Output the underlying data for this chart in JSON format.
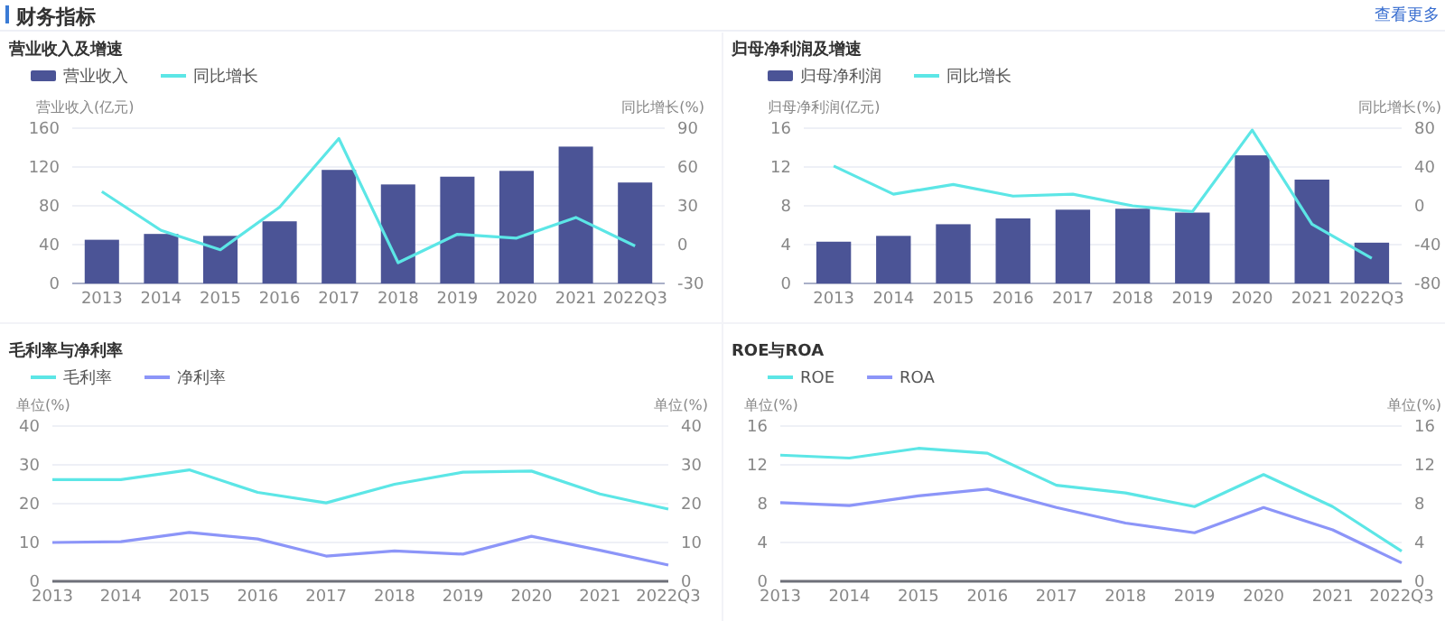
{
  "chart_data": [
    {
      "type": "bar",
      "title": "营业收入及增速",
      "annotations": [
        "财务指标"
      ],
      "ylabel": "营业收入(亿元)",
      "y2label": "同比增长(%)",
      "categories": [
        "2013",
        "2014",
        "2015",
        "2016",
        "2017",
        "2018",
        "2019",
        "2020",
        "2021",
        "2022Q3"
      ],
      "series": [
        {
          "name": "营业收入",
          "color": "#4b5496",
          "values": [
            45,
            51,
            49,
            64,
            117,
            102,
            110,
            116,
            141,
            104
          ]
        },
        {
          "name": "同比增长",
          "type": "line",
          "axis": "y2",
          "color": "#5ce6e6",
          "values": [
            41,
            11,
            -4,
            29,
            82,
            -14,
            8,
            5,
            21,
            -1
          ]
        }
      ],
      "ylim": [
        0,
        160
      ],
      "yticks": [
        0,
        40,
        80,
        120,
        160
      ],
      "y2lim": [
        -30,
        90
      ],
      "y2ticks": [
        -30,
        0,
        30,
        60,
        90
      ],
      "grid": "y",
      "legend": "top left"
    },
    {
      "type": "bar",
      "title": "归母净利润及增速",
      "annotations": [
        "查看更多"
      ],
      "ylabel": "归母净利润(亿元)",
      "y2label": "同比增长(%)",
      "categories": [
        "2013",
        "2014",
        "2015",
        "2016",
        "2017",
        "2018",
        "2019",
        "2020",
        "2021",
        "2022Q3"
      ],
      "series": [
        {
          "name": "归母净利润",
          "color": "#4b5496",
          "values": [
            4.3,
            4.9,
            6.1,
            6.7,
            7.6,
            7.7,
            7.3,
            13.2,
            10.7,
            4.2
          ]
        },
        {
          "name": "同比增长",
          "type": "line",
          "axis": "y2",
          "color": "#5ce6e6",
          "values": [
            41,
            12,
            22,
            10,
            12,
            0,
            -6,
            78,
            -19,
            -54
          ]
        }
      ],
      "ylim": [
        0,
        16
      ],
      "yticks": [
        0,
        4,
        8,
        12,
        16
      ],
      "y2lim": [
        -80,
        80
      ],
      "y2ticks": [
        -80,
        -40,
        0,
        40,
        80
      ],
      "grid": "y",
      "legend": "top left"
    },
    {
      "type": "line",
      "title": "毛利率与净利率",
      "ylabel": "单位(%)",
      "y2label": "单位(%)",
      "categories": [
        "2013",
        "2014",
        "2015",
        "2016",
        "2017",
        "2018",
        "2019",
        "2020",
        "2021",
        "2022Q3"
      ],
      "series": [
        {
          "name": "毛利率",
          "color": "#5ce6e6",
          "values": [
            26.2,
            26.2,
            28.7,
            22.9,
            20.2,
            25,
            28.1,
            28.4,
            22.5,
            18.6
          ]
        },
        {
          "name": "净利率",
          "color": "#8c95f8",
          "values": [
            10,
            10.2,
            12.6,
            10.9,
            6.5,
            7.8,
            7,
            11.6,
            8,
            4.2
          ]
        }
      ],
      "ylim": [
        0,
        40
      ],
      "yticks": [
        0,
        10,
        20,
        30,
        40
      ],
      "y2lim": [
        0,
        40
      ],
      "y2ticks": [
        0,
        10,
        20,
        30,
        40
      ],
      "grid": "y",
      "legend": "top left"
    },
    {
      "type": "line",
      "title": "ROE与ROA",
      "ylabel": "单位(%)",
      "y2label": "单位(%)",
      "categories": [
        "2013",
        "2014",
        "2015",
        "2016",
        "2017",
        "2018",
        "2019",
        "2020",
        "2021",
        "2022Q3"
      ],
      "series": [
        {
          "name": "ROE",
          "color": "#5ce6e6",
          "values": [
            13,
            12.7,
            13.7,
            13.2,
            9.9,
            9.1,
            7.7,
            11,
            7.7,
            3.1
          ]
        },
        {
          "name": "ROA",
          "color": "#8c95f8",
          "values": [
            8.1,
            7.8,
            8.8,
            9.5,
            7.6,
            6,
            5,
            7.6,
            5.3,
            1.9
          ]
        }
      ],
      "ylim": [
        0,
        16
      ],
      "yticks": [
        0,
        4,
        8,
        12,
        16
      ],
      "y2lim": [
        0,
        16
      ],
      "y2ticks": [
        0,
        4,
        8,
        12,
        16
      ],
      "grid": "y",
      "legend": "top left"
    }
  ]
}
